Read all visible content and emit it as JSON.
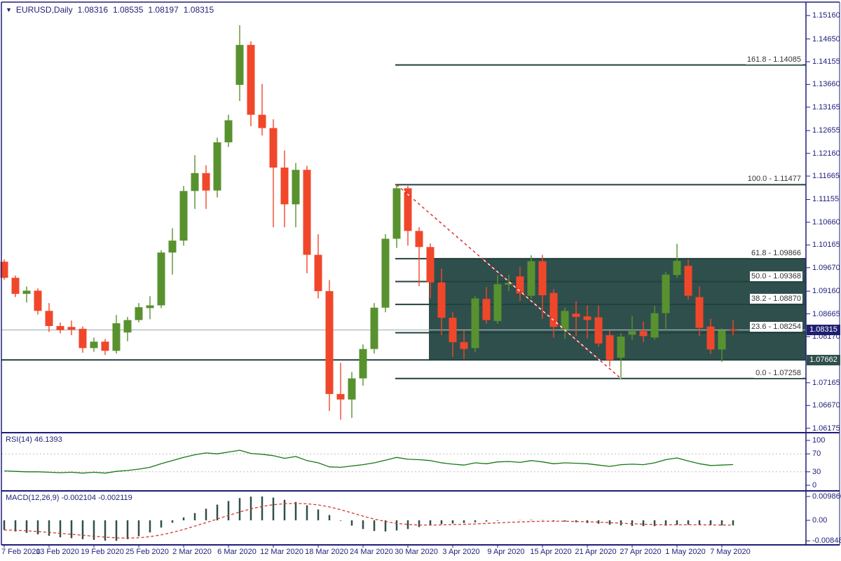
{
  "header": {
    "symbol_period": "EURUSD,Daily",
    "open": "1.08316",
    "high": "1.08535",
    "low": "1.08197",
    "close": "1.08315"
  },
  "badges": {
    "current_price": "1.08315",
    "hline_price": "1.07662"
  },
  "rsi_panel": {
    "label": "RSI(14) 46.1393",
    "ticks": [
      "100",
      "70",
      "30",
      "0"
    ]
  },
  "macd_panel": {
    "label": "MACD(12,26,9) -0.002104 -0.002119",
    "ticks": [
      "0.009866",
      "0.00",
      "-0.008485"
    ]
  },
  "price_axis_ticks": [
    "1.15160",
    "1.14650",
    "1.14155",
    "1.13660",
    "1.13165",
    "1.12655",
    "1.12160",
    "1.11665",
    "1.11155",
    "1.10660",
    "1.10165",
    "1.09670",
    "1.09160",
    "1.08665",
    "1.08170",
    "1.07165",
    "1.06670",
    "1.06175"
  ],
  "colors": {
    "navy": "#1e1e7b",
    "bull": "#58922f",
    "bear": "#f0472b",
    "overlay_fill": "#2f4f4c",
    "overlay_line": "#21413d",
    "current_price_line": "#a9b6bf",
    "badge_current_bg": "#1f1f6e",
    "badge_hline_bg": "#2f4f4c",
    "rsi_line": "#157815",
    "rsi_levels": "#c0c0c0",
    "macd_bar": "#2f4f4d",
    "macd_signal": "#d23a2e",
    "trendline": "#e02222"
  },
  "chart_data": {
    "type": "candlestick",
    "title": "EURUSD Daily",
    "x_axis_labels": [
      {
        "index": 0,
        "label": "7 Feb 2020"
      },
      {
        "index": 4,
        "label": "13 Feb 2020"
      },
      {
        "index": 8,
        "label": "19 Feb 2020"
      },
      {
        "index": 12,
        "label": "25 Feb 2020"
      },
      {
        "index": 16,
        "label": "2 Mar 2020"
      },
      {
        "index": 20,
        "label": "6 Mar 2020"
      },
      {
        "index": 24,
        "label": "12 Mar 2020"
      },
      {
        "index": 28,
        "label": "18 Mar 2020"
      },
      {
        "index": 32,
        "label": "24 Mar 2020"
      },
      {
        "index": 36,
        "label": "30 Mar 2020"
      },
      {
        "index": 40,
        "label": "3 Apr 2020"
      },
      {
        "index": 44,
        "label": "9 Apr 2020"
      },
      {
        "index": 48,
        "label": "15 Apr 2020"
      },
      {
        "index": 52,
        "label": "21 Apr 2020"
      },
      {
        "index": 56,
        "label": "27 Apr 2020"
      },
      {
        "index": 60,
        "label": "1 May 2020"
      },
      {
        "index": 64,
        "label": "7 May 2020"
      }
    ],
    "dates": [
      "2020-02-07",
      "2020-02-10",
      "2020-02-11",
      "2020-02-12",
      "2020-02-13",
      "2020-02-14",
      "2020-02-17",
      "2020-02-18",
      "2020-02-19",
      "2020-02-20",
      "2020-02-21",
      "2020-02-24",
      "2020-02-25",
      "2020-02-26",
      "2020-02-27",
      "2020-02-28",
      "2020-03-02",
      "2020-03-03",
      "2020-03-04",
      "2020-03-05",
      "2020-03-06",
      "2020-03-09",
      "2020-03-10",
      "2020-03-11",
      "2020-03-12",
      "2020-03-13",
      "2020-03-16",
      "2020-03-17",
      "2020-03-18",
      "2020-03-19",
      "2020-03-20",
      "2020-03-23",
      "2020-03-24",
      "2020-03-25",
      "2020-03-26",
      "2020-03-27",
      "2020-03-30",
      "2020-03-31",
      "2020-04-01",
      "2020-04-02",
      "2020-04-03",
      "2020-04-06",
      "2020-04-07",
      "2020-04-08",
      "2020-04-09",
      "2020-04-10",
      "2020-04-13",
      "2020-04-14",
      "2020-04-15",
      "2020-04-16",
      "2020-04-17",
      "2020-04-20",
      "2020-04-21",
      "2020-04-22",
      "2020-04-23",
      "2020-04-24",
      "2020-04-27",
      "2020-04-28",
      "2020-04-29",
      "2020-04-30",
      "2020-05-01",
      "2020-05-04",
      "2020-05-05",
      "2020-05-06",
      "2020-05-07",
      "2020-05-08"
    ],
    "candles_ohlc": [
      [
        1.098,
        1.0985,
        1.0941,
        1.0945
      ],
      [
        1.0945,
        1.095,
        1.0903,
        1.091
      ],
      [
        1.091,
        1.0926,
        1.0891,
        1.0917
      ],
      [
        1.0917,
        1.0922,
        1.0865,
        1.0873
      ],
      [
        1.0873,
        1.089,
        1.0827,
        1.084
      ],
      [
        1.084,
        1.0848,
        1.0824,
        1.0831
      ],
      [
        1.0838,
        1.0852,
        1.082,
        1.0832
      ],
      [
        1.0834,
        1.0839,
        1.0782,
        1.0792
      ],
      [
        1.0792,
        1.0815,
        1.0784,
        1.0806
      ],
      [
        1.0806,
        1.0812,
        1.0777,
        1.0786
      ],
      [
        1.0786,
        1.0864,
        1.078,
        1.0846
      ],
      [
        1.0826,
        1.086,
        1.0807,
        1.0853
      ],
      [
        1.0853,
        1.089,
        1.0848,
        1.0881
      ],
      [
        1.0879,
        1.0905,
        1.0855,
        1.0885
      ],
      [
        1.0885,
        1.1005,
        1.0879,
        1.1
      ],
      [
        1.1,
        1.1053,
        1.0952,
        1.1026
      ],
      [
        1.1026,
        1.1145,
        1.1015,
        1.1134
      ],
      [
        1.1134,
        1.1212,
        1.1095,
        1.1173
      ],
      [
        1.1173,
        1.119,
        1.1095,
        1.1135
      ],
      [
        1.1135,
        1.125,
        1.112,
        1.124
      ],
      [
        1.124,
        1.13,
        1.123,
        1.1288
      ],
      [
        1.1365,
        1.1495,
        1.133,
        1.1452
      ],
      [
        1.1452,
        1.146,
        1.1275,
        1.13
      ],
      [
        1.13,
        1.1367,
        1.1255,
        1.1271
      ],
      [
        1.1271,
        1.129,
        1.1055,
        1.1185
      ],
      [
        1.1185,
        1.1222,
        1.1055,
        1.1105
      ],
      [
        1.1105,
        1.1195,
        1.1055,
        1.118
      ],
      [
        1.118,
        1.1189,
        1.0955,
        1.0995
      ],
      [
        1.0995,
        1.104,
        1.09,
        1.0916
      ],
      [
        1.0916,
        1.094,
        1.0655,
        1.0692
      ],
      [
        1.0692,
        1.076,
        1.0636,
        1.068
      ],
      [
        1.068,
        1.074,
        1.064,
        1.0726
      ],
      [
        1.0726,
        1.08,
        1.071,
        1.079
      ],
      [
        1.079,
        1.089,
        1.078,
        1.088
      ],
      [
        1.088,
        1.104,
        1.087,
        1.103
      ],
      [
        1.103,
        1.11477,
        1.101,
        1.114
      ],
      [
        1.114,
        1.1145,
        1.1015,
        1.1047
      ],
      [
        1.1047,
        1.1055,
        1.0927,
        1.1012
      ],
      [
        1.1012,
        1.102,
        1.09,
        1.0935
      ],
      [
        1.0935,
        1.0965,
        1.082,
        1.0858
      ],
      [
        1.0858,
        1.087,
        1.0773,
        1.0805
      ],
      [
        1.0805,
        1.083,
        1.0768,
        1.079
      ],
      [
        1.0792,
        1.0905,
        1.0783,
        1.09
      ],
      [
        1.0899,
        1.0925,
        1.0845,
        1.0853
      ],
      [
        1.0851,
        1.0951,
        1.0845,
        1.0931
      ],
      [
        1.093,
        1.0952,
        1.0916,
        1.0934
      ],
      [
        1.0948,
        1.0968,
        1.0895,
        1.0911
      ],
      [
        1.0906,
        1.0994,
        1.09,
        1.0981
      ],
      [
        1.0981,
        1.0995,
        1.0856,
        1.0907
      ],
      [
        1.0912,
        1.092,
        1.0815,
        1.0838
      ],
      [
        1.0833,
        1.088,
        1.0812,
        1.0873
      ],
      [
        1.0867,
        1.0894,
        1.0818,
        1.086
      ],
      [
        1.0861,
        1.0885,
        1.0813,
        1.0853
      ],
      [
        1.0859,
        1.0885,
        1.0795,
        1.0802
      ],
      [
        1.082,
        1.083,
        1.0752,
        1.0766
      ],
      [
        1.0771,
        1.0825,
        1.07258,
        1.0817
      ],
      [
        1.0821,
        1.0862,
        1.081,
        1.0829
      ],
      [
        1.0829,
        1.085,
        1.0805,
        1.0818
      ],
      [
        1.0815,
        1.0884,
        1.081,
        1.0868
      ],
      [
        1.0868,
        1.0958,
        1.083,
        1.0952
      ],
      [
        1.0951,
        1.1019,
        1.0945,
        1.0982
      ],
      [
        1.0971,
        1.0985,
        1.0897,
        1.0906
      ],
      [
        1.0903,
        1.0926,
        1.0818,
        1.0836
      ],
      [
        1.0839,
        1.0856,
        1.0779,
        1.0789
      ],
      [
        1.0789,
        1.0835,
        1.0762,
        1.0831
      ],
      [
        1.08316,
        1.08535,
        1.08197,
        1.08315
      ]
    ],
    "overlays": {
      "current_price": 1.08315,
      "horizontal_line": 1.07662,
      "rectangle": {
        "start_index": 38,
        "price_top": 1.09866,
        "price_bottom": 1.07662
      },
      "fibonacci": {
        "anchor_high": {
          "date": "2020-03-27",
          "price": 1.11477,
          "index": 35
        },
        "anchor_low": {
          "date": "2020-04-24",
          "price": 1.07258,
          "index": 55
        },
        "levels": [
          {
            "pct": "161.8",
            "price": 1.14085,
            "label": "161.8 - 1.14085"
          },
          {
            "pct": "100.0",
            "price": 1.11477,
            "label": "100.0 - 1.11477"
          },
          {
            "pct": "61.8",
            "price": 1.09866,
            "label": "61.8 - 1.09866"
          },
          {
            "pct": "50.0",
            "price": 1.09368,
            "label": "50.0 - 1.09368"
          },
          {
            "pct": "38.2",
            "price": 1.0887,
            "label": "38.2 - 1.08870"
          },
          {
            "pct": "23.6",
            "price": 1.08254,
            "label": "23.6 - 1.08254"
          },
          {
            "pct": "0.0",
            "price": 1.07258,
            "label": "0.0 - 1.07258"
          }
        ]
      }
    },
    "indicators": {
      "rsi": {
        "name": "RSI",
        "period": 14,
        "current": 46.1393,
        "scale": [
          0,
          100
        ],
        "levels": [
          70,
          30
        ],
        "values": [
          32,
          31,
          30,
          30,
          29,
          28,
          29,
          27,
          29,
          27,
          31,
          33,
          36,
          40,
          48,
          55,
          62,
          68,
          72,
          70,
          74,
          78,
          71,
          69,
          66,
          60,
          64,
          55,
          50,
          41,
          40,
          43,
          46,
          50,
          56,
          62,
          58,
          57,
          55,
          50,
          47,
          45,
          50,
          48,
          52,
          53,
          51,
          55,
          52,
          48,
          50,
          49,
          48,
          45,
          42,
          46,
          47,
          46,
          50,
          57,
          61,
          54,
          48,
          44,
          45,
          46.1393
        ]
      },
      "macd": {
        "name": "MACD",
        "fast": 12,
        "slow": 26,
        "signal_period": 9,
        "main_current": -0.002104,
        "signal_current": -0.002119,
        "scale_max": 0.009866,
        "scale_min": -0.008485,
        "main": [
          -0.004,
          -0.0046,
          -0.0052,
          -0.0058,
          -0.0064,
          -0.007,
          -0.0074,
          -0.0078,
          -0.0081,
          -0.0084,
          -0.008485,
          -0.0078,
          -0.0066,
          -0.005,
          -0.003,
          -0.001,
          0.0012,
          0.003,
          0.0048,
          0.0065,
          0.008,
          0.0092,
          0.0098,
          0.009866,
          0.0094,
          0.0085,
          0.0076,
          0.0062,
          0.0045,
          0.0022,
          -0.0002,
          -0.0022,
          -0.0036,
          -0.0044,
          -0.0046,
          -0.0042,
          -0.0036,
          -0.0028,
          -0.0021,
          -0.0016,
          -0.0013,
          -0.0011,
          -0.0008,
          -0.0005,
          -0.0002,
          0.0,
          0.0001,
          0.0002,
          0.0001,
          -0.0002,
          -0.0005,
          -0.0008,
          -0.0011,
          -0.0014,
          -0.0018,
          -0.0021,
          -0.0023,
          -0.0024,
          -0.0024,
          -0.0022,
          -0.0019,
          -0.0018,
          -0.0019,
          -0.002,
          -0.0021,
          -0.002104
        ]
      }
    }
  }
}
